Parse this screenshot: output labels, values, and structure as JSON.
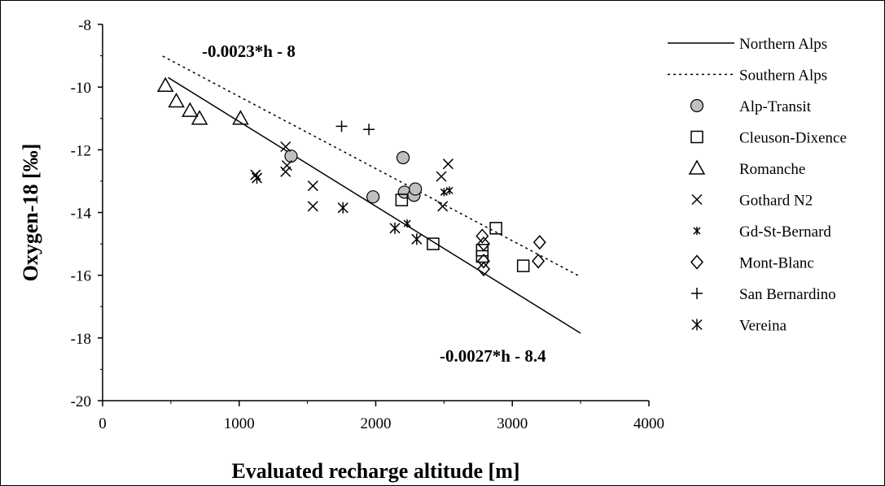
{
  "chart_data": {
    "type": "scatter",
    "xlabel": "Evaluated recharge altitude [m]",
    "ylabel": "Oxygen-18 [‰]",
    "xlim": [
      0,
      4000
    ],
    "ylim": [
      -20,
      -8
    ],
    "xticks": [
      0,
      1000,
      2000,
      3000,
      4000
    ],
    "yticks": [
      -8,
      -10,
      -12,
      -14,
      -16,
      -18,
      -20
    ],
    "grid": false,
    "legend_position": "right",
    "annotations": [
      {
        "id": "southern",
        "text": "-0.0023*h - 8"
      },
      {
        "id": "northern",
        "text": "-0.0027*h - 8.4"
      }
    ],
    "lines": [
      {
        "name": "Northern Alps",
        "style": "solid",
        "slope": -0.0027,
        "intercept": -8.4,
        "x_range": [
          480,
          3500
        ]
      },
      {
        "name": "Southern Alps",
        "style": "dotted",
        "slope": -0.0023,
        "intercept": -8,
        "x_range": [
          440,
          3480
        ]
      }
    ],
    "series": [
      {
        "name": "Alp-Transit",
        "marker": "circle",
        "x": [
          1380,
          1980,
          2200,
          2210,
          2280,
          2290
        ],
        "y": [
          -12.2,
          -13.5,
          -12.25,
          -13.35,
          -13.45,
          -13.25
        ]
      },
      {
        "name": "Cleuson-Dixence",
        "marker": "square",
        "x": [
          2190,
          2420,
          2780,
          2780,
          2880,
          3080
        ],
        "y": [
          -13.6,
          -15.0,
          -15.2,
          -15.4,
          -14.5,
          -15.7
        ]
      },
      {
        "name": "Romanche",
        "marker": "triangle",
        "x": [
          460,
          540,
          640,
          710,
          1010
        ],
        "y": [
          -9.95,
          -10.45,
          -10.75,
          -11.0,
          -11.0
        ]
      },
      {
        "name": "Gothard N2",
        "marker": "x",
        "x": [
          1120,
          1340,
          1340,
          1350,
          1540,
          1540,
          2480,
          2490,
          2530
        ],
        "y": [
          -12.8,
          -11.9,
          -12.7,
          -12.5,
          -13.15,
          -13.8,
          -12.85,
          -13.8,
          -12.45
        ]
      },
      {
        "name": "Gd-St-Bernard",
        "marker": "small-star",
        "x": [
          2230,
          2500,
          2540
        ],
        "y": [
          -14.35,
          -13.35,
          -13.3
        ]
      },
      {
        "name": "Mont-Blanc",
        "marker": "diamond",
        "x": [
          2780,
          2790,
          2790,
          2790,
          3190,
          3200
        ],
        "y": [
          -14.75,
          -15.0,
          -15.55,
          -15.8,
          -15.55,
          -14.95
        ]
      },
      {
        "name": "San Bernardino",
        "marker": "plus",
        "x": [
          1750,
          1950
        ],
        "y": [
          -11.25,
          -11.35
        ]
      },
      {
        "name": "Vereina",
        "marker": "star",
        "x": [
          1130,
          1760,
          2140,
          2300
        ],
        "y": [
          -12.9,
          -13.85,
          -14.5,
          -14.85
        ]
      }
    ]
  }
}
